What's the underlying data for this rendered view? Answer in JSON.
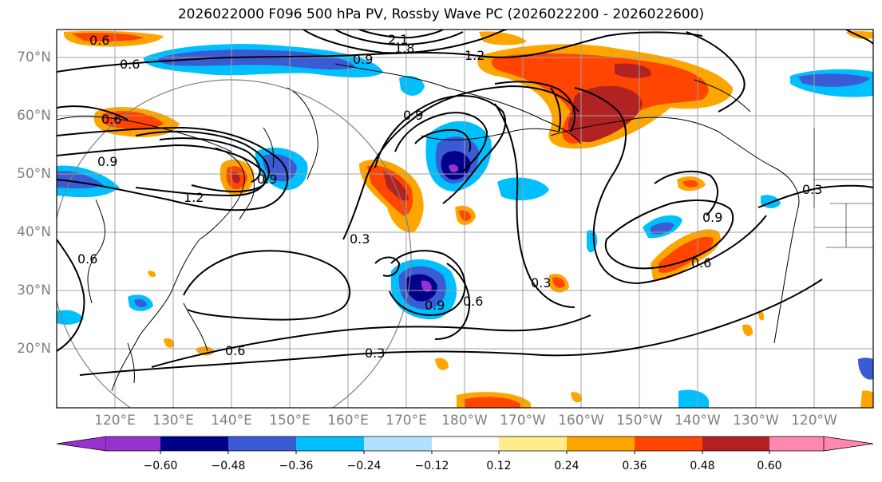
{
  "title": "2026022000 F096 500 hPa PV, Rossby Wave PC (2026022200 - 2026022600)",
  "lat_labels": [
    {
      "name": "lat-70",
      "text": "70°N"
    },
    {
      "name": "lat-60",
      "text": "60°N"
    },
    {
      "name": "lat-50",
      "text": "50°N"
    },
    {
      "name": "lat-40",
      "text": "40°N"
    },
    {
      "name": "lat-30",
      "text": "30°N"
    },
    {
      "name": "lat-20",
      "text": "20°N"
    }
  ],
  "lon_labels": [
    {
      "name": "lon-120e",
      "text": "120°E"
    },
    {
      "name": "lon-130e",
      "text": "130°E"
    },
    {
      "name": "lon-140e",
      "text": "140°E"
    },
    {
      "name": "lon-150e",
      "text": "150°E"
    },
    {
      "name": "lon-160e",
      "text": "160°E"
    },
    {
      "name": "lon-170e",
      "text": "170°E"
    },
    {
      "name": "lon-180w",
      "text": "180°W"
    },
    {
      "name": "lon-170w",
      "text": "170°W"
    },
    {
      "name": "lon-160w",
      "text": "160°W"
    },
    {
      "name": "lon-150w",
      "text": "150°W"
    },
    {
      "name": "lon-140w",
      "text": "140°W"
    },
    {
      "name": "lon-130w",
      "text": "130°W"
    },
    {
      "name": "lon-120w",
      "text": "120°W"
    }
  ],
  "contour_labels": [
    "0.6",
    "0.6",
    "0.6",
    "0.9",
    "1.2",
    "2.1",
    "1.8",
    "1.2",
    "0.9",
    "0.9",
    "0.6",
    "0.9",
    "0.3",
    "0.9",
    "0.6",
    "0.3",
    "0.3",
    "0.6",
    "0.3",
    "0.9",
    "0.6"
  ],
  "colorbar": {
    "colors": [
      "#9932cc",
      "#00008b",
      "#3a5bd3",
      "#00bfff",
      "#b0e2ff",
      "#ffffff",
      "#ffec8b",
      "#ffa500",
      "#ff4500",
      "#b22222",
      "#ff88b0"
    ],
    "ticks": [
      "−0.60",
      "−0.48",
      "−0.36",
      "−0.24",
      "−0.12",
      "0.12",
      "0.24",
      "0.36",
      "0.48",
      "0.60"
    ]
  }
}
